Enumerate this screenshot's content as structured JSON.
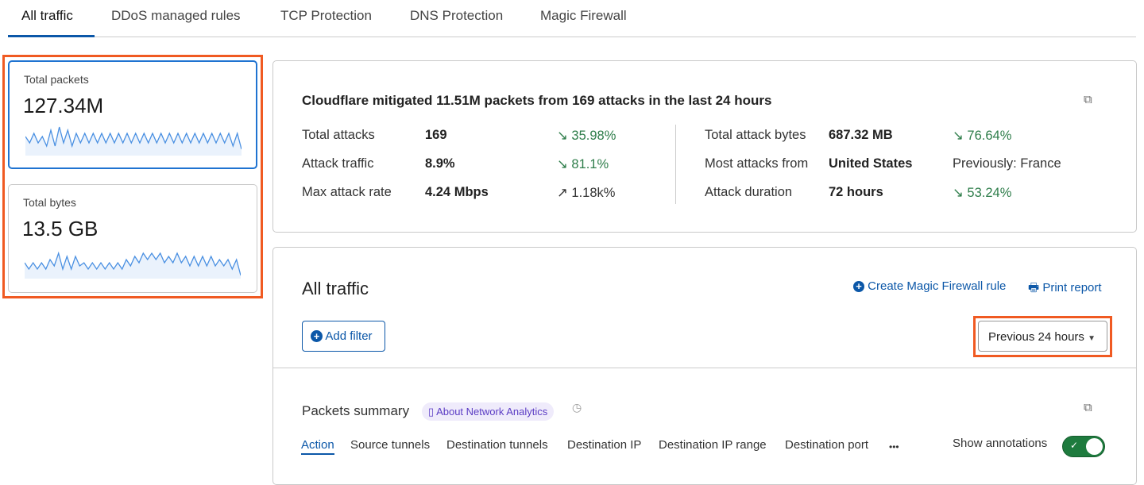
{
  "tabs": [
    "All traffic",
    "DDoS managed rules",
    "TCP Protection",
    "DNS Protection",
    "Magic Firewall"
  ],
  "cards": [
    {
      "label": "Total packets",
      "value": "127.34M",
      "spark": [
        5,
        3,
        6,
        3,
        5,
        2,
        7,
        2,
        8,
        3,
        7,
        2,
        6,
        3,
        6,
        3,
        6,
        3,
        6,
        3,
        6,
        3,
        6,
        3,
        6,
        3,
        6,
        3,
        6,
        3,
        6,
        3,
        6,
        3,
        6,
        3,
        6,
        3,
        6,
        3,
        6,
        3,
        6,
        3,
        6,
        3,
        6,
        3,
        6,
        2,
        6,
        1
      ]
    },
    {
      "label": "Total bytes",
      "value": "13.5 GB",
      "spark": [
        4,
        2,
        4,
        2,
        4,
        2,
        5,
        3,
        7,
        2,
        6,
        2,
        6,
        3,
        4,
        2,
        4,
        2,
        4,
        2,
        4,
        2,
        4,
        2,
        5,
        3,
        6,
        4,
        7,
        5,
        7,
        5,
        7,
        4,
        6,
        4,
        7,
        4,
        6,
        3,
        6,
        3,
        6,
        3,
        6,
        3,
        5,
        3,
        5,
        2,
        5,
        0
      ]
    }
  ],
  "summary": {
    "headline": "Cloudflare mitigated 11.51M packets from 169 attacks in the last 24 hours",
    "left": [
      {
        "label": "Total attacks",
        "value": "169",
        "change": "35.98%",
        "dir": "down"
      },
      {
        "label": "Attack traffic",
        "value": "8.9%",
        "change": "81.1%",
        "dir": "down"
      },
      {
        "label": "Max attack rate",
        "value": "4.24 Mbps",
        "change": "1.18k%",
        "dir": "up"
      }
    ],
    "right": [
      {
        "label": "Total attack bytes",
        "value": "687.32 MB",
        "change": "76.64%",
        "dir": "down"
      },
      {
        "label": "Most attacks from",
        "value": "United States",
        "change": "Previously: France",
        "dir": "none"
      },
      {
        "label": "Attack duration",
        "value": "72 hours",
        "change": "53.24%",
        "dir": "down"
      }
    ]
  },
  "traffic": {
    "title": "All traffic",
    "create_rule": "Create Magic Firewall rule",
    "print": "Print report",
    "add_filter": "Add filter",
    "time_range": "Previous 24 hours",
    "packets_title": "Packets summary",
    "about": "About Network Analytics",
    "subtabs": [
      "Action",
      "Source tunnels",
      "Destination tunnels",
      "Destination IP",
      "Destination IP range",
      "Destination port"
    ],
    "more": "•••",
    "show_annotations": "Show annotations",
    "annotations_on": true
  },
  "colors": {
    "accent": "#0b57a8",
    "highlight": "#f05a22",
    "success": "#2e7d4a",
    "toggle": "#1e7b3e"
  }
}
